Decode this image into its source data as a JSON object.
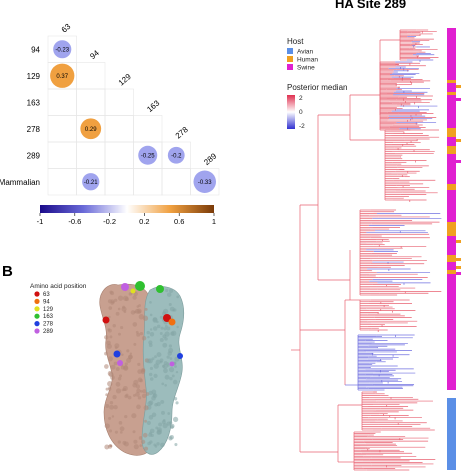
{
  "colors": {
    "avian": "#5b8fe6",
    "human": "#f0a020",
    "swine": "#e020d0",
    "tree_red": "#e86070",
    "tree_blue": "#7070e0",
    "prot_left": "#c8a090",
    "prot_right": "#9cbcbc"
  },
  "panel_a": {
    "rows": [
      "94",
      "129",
      "163",
      "278",
      "289",
      "Mammalian"
    ],
    "diag_labels": [
      "63",
      "94",
      "129",
      "163",
      "278",
      "289"
    ],
    "circles": [
      {
        "row": 0,
        "col": 0,
        "label": "-0.23",
        "value": -0.23
      },
      {
        "row": 1,
        "col": 0,
        "label": "0.37",
        "value": 0.37
      },
      {
        "row": 3,
        "col": 1,
        "label": "0.29",
        "value": 0.29
      },
      {
        "row": 4,
        "col": 3,
        "label": "-0.25",
        "value": -0.25
      },
      {
        "row": 4,
        "col": 4,
        "label": "-0.2",
        "value": -0.2
      },
      {
        "row": 5,
        "col": 1,
        "label": "-0.21",
        "value": -0.21
      },
      {
        "row": 5,
        "col": 5,
        "label": "-0.33",
        "value": -0.33
      }
    ],
    "colorbar_ticks": [
      "-1",
      "-0.6",
      "-0.2",
      "0.2",
      "0.6",
      "1"
    ]
  },
  "panel_b": {
    "label": "B",
    "legend_title": "Amino acid position",
    "items": [
      {
        "label": "63",
        "color": "#d01010"
      },
      {
        "label": "94",
        "color": "#f07010"
      },
      {
        "label": "129",
        "color": "#e0e020"
      },
      {
        "label": "163",
        "color": "#30c030"
      },
      {
        "label": "278",
        "color": "#2040e0"
      },
      {
        "label": "289",
        "color": "#c060e0"
      }
    ]
  },
  "panel_c": {
    "title": "HA Site 289",
    "host_title": "Host",
    "hosts": [
      {
        "label": "Avian",
        "color": "#5b8fe6"
      },
      {
        "label": "Human",
        "color": "#f0a020"
      },
      {
        "label": "Swine",
        "color": "#e020d0"
      }
    ],
    "pm_title": "Posterior median",
    "pm_ticks": [
      "2",
      "0",
      "-2"
    ]
  }
}
